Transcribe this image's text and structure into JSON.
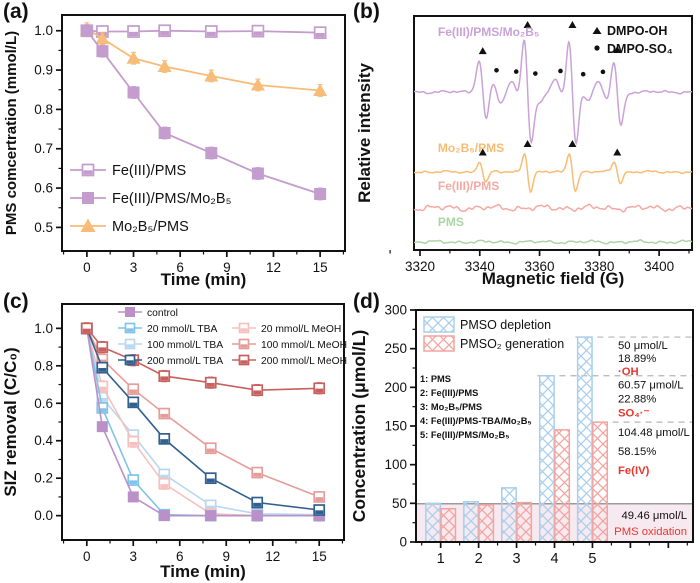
{
  "figure": {
    "background": "#ffffff",
    "panels": [
      {
        "label": "(a)"
      },
      {
        "label": "(b)"
      },
      {
        "label": "(c)"
      },
      {
        "label": "(d)"
      }
    ]
  },
  "chart_data": [
    {
      "id": "a",
      "type": "line",
      "xlabel": "Time (min)",
      "ylabel": "PMS comcertration (mmol/L)",
      "x": [
        0,
        1,
        3,
        5,
        8,
        11,
        15
      ],
      "xticks": [
        0,
        3,
        6,
        9,
        12,
        15
      ],
      "xlim": [
        -1.6,
        16.6
      ],
      "yticks": [
        0.5,
        0.6,
        0.7,
        0.8,
        0.9,
        1.0
      ],
      "ylim": [
        0.44,
        1.04
      ],
      "grid": false,
      "legend_position": "bottom-left",
      "series": [
        {
          "name": "Fe(III)/PMS",
          "marker": "square-half",
          "color": "#c49ccd",
          "err": 0.012,
          "values": [
            1.0,
            0.998,
            0.998,
            1.0,
            0.998,
            0.999,
            0.995
          ]
        },
        {
          "name": "Fe(III)/PMS/Mo₂B₅",
          "marker": "square",
          "color": "#c49ccd",
          "err": 0.015,
          "values": [
            1.0,
            0.948,
            0.843,
            0.74,
            0.689,
            0.637,
            0.585
          ]
        },
        {
          "name": "Mo₂B₅/PMS",
          "marker": "triangle",
          "color": "#f6bc78",
          "err": 0.015,
          "values": [
            1.005,
            0.98,
            0.93,
            0.909,
            0.885,
            0.862,
            0.848
          ]
        }
      ]
    },
    {
      "id": "b",
      "type": "line-epr",
      "xlabel": "Magnetic field (G)",
      "ylabel": "Relative intensity",
      "xticks": [
        3320,
        3340,
        3360,
        3380,
        3400
      ],
      "xlim": [
        3318,
        3411
      ],
      "legend": [
        {
          "symbol": "triangle",
          "label": "DMPO-OH"
        },
        {
          "symbol": "dot",
          "label": "DMPO-SO₄"
        }
      ],
      "traces": [
        {
          "name": "Fe(III)/PMS/Mo₂B₅",
          "color": "#c9a2d8",
          "baseline": 92,
          "noise": 1.6,
          "main_peaks": {
            "centers": [
              3341,
              3356,
              3371,
              3386
            ],
            "amps": [
              0.55,
              1,
              1,
              0.57
            ],
            "width": 1.25,
            "scale": 58,
            "marker": "triangle"
          },
          "satellites": {
            "centers": [
              3345.6,
              3352.2,
              3358.6,
              3367,
              3374.6,
              3381.2
            ],
            "amps": [
              0.9,
              0.8,
              0.65,
              0.85,
              0.6,
              0.78
            ],
            "width": 1.7,
            "scale": 13,
            "marker": "dot"
          },
          "label_x": 3326,
          "label_y": 36
        },
        {
          "name": "Mo₂B₅/PMS",
          "color": "#f8bc72",
          "baseline": 172,
          "noise": 1.4,
          "main_peaks": {
            "centers": [
              3341,
              3356,
              3371,
              3386
            ],
            "amps": [
              0.55,
              1,
              1,
              0.55
            ],
            "width": 1.05,
            "scale": 19,
            "marker": "triangle"
          },
          "label_x": 3326,
          "label_y": 152
        },
        {
          "name": "Fe(III)/PMS",
          "color": "#f7a8a2",
          "baseline": 208,
          "noise": 3.4,
          "label_x": 3326,
          "label_y": 190
        },
        {
          "name": "PMS",
          "color": "#abd5a3",
          "baseline": 242,
          "noise": 1.8,
          "label_x": 3326,
          "label_y": 226
        }
      ]
    },
    {
      "id": "c",
      "type": "line",
      "xlabel": "Time (min)",
      "ylabel": "SIZ removal (C/C₀)",
      "x": [
        0,
        1,
        3,
        5,
        8,
        11,
        15
      ],
      "xticks": [
        0,
        3,
        6,
        9,
        12,
        15
      ],
      "xlim": [
        -1.6,
        16.6
      ],
      "yticks": [
        0.0,
        0.2,
        0.4,
        0.6,
        0.8,
        1.0
      ],
      "ylim": [
        -0.13,
        1.13
      ],
      "grid": false,
      "legend_position": "top",
      "series": [
        {
          "name": "control",
          "marker": "square",
          "color": "#bb90c9",
          "err": 0.02,
          "values": [
            1.0,
            0.475,
            0.1,
            0.0,
            0.0,
            0.0,
            0.0
          ]
        },
        {
          "name": "20 mmol/L TBA",
          "marker": "square-half",
          "color": "#7fc4e9",
          "err": 0.02,
          "values": [
            1.0,
            0.575,
            0.19,
            0.005,
            0.0,
            0.0,
            0.0
          ]
        },
        {
          "name": "100 mmol/L TBA",
          "marker": "square-half",
          "color": "#b9d7ef",
          "err": 0.02,
          "values": [
            1.0,
            0.63,
            0.43,
            0.22,
            0.055,
            0.01,
            0.005
          ]
        },
        {
          "name": "200 mmol/L TBA",
          "marker": "square-half",
          "color": "#30608f",
          "err": 0.025,
          "values": [
            1.0,
            0.79,
            0.605,
            0.41,
            0.2,
            0.07,
            0.03
          ]
        },
        {
          "name": "20 mmol/L MeOH",
          "marker": "square-half",
          "color": "#f6c1be",
          "err": 0.03,
          "values": [
            1.0,
            0.69,
            0.395,
            0.17,
            0.01,
            0.0,
            0.0
          ]
        },
        {
          "name": "100 mmol/L MeOH",
          "marker": "square-half",
          "color": "#e59d99",
          "err": 0.02,
          "values": [
            1.0,
            0.835,
            0.675,
            0.545,
            0.36,
            0.23,
            0.1
          ]
        },
        {
          "name": "200 mmol/L MeOH",
          "marker": "square-half",
          "color": "#c8605d",
          "err": 0.03,
          "values": [
            1.0,
            0.9,
            0.83,
            0.745,
            0.71,
            0.67,
            0.68
          ]
        }
      ],
      "legend_rows": [
        [
          0
        ],
        [
          1,
          4
        ],
        [
          2,
          5
        ],
        [
          3,
          6
        ]
      ]
    },
    {
      "id": "d",
      "type": "bar",
      "ylabel": "Concentration (μmol/L)",
      "categories": [
        "1",
        "2",
        "3",
        "4",
        "5"
      ],
      "yticks": [
        0,
        50,
        100,
        150,
        200,
        250,
        300
      ],
      "ylim": [
        0,
        300
      ],
      "series": [
        {
          "name": "PMSO depletion",
          "color": "#a9cfec",
          "values": [
            50,
            52,
            70,
            215,
            265
          ]
        },
        {
          "name": "PMSO₂ generation",
          "color": "#f3a49e",
          "values": [
            43,
            48,
            51,
            145,
            155
          ]
        }
      ],
      "conditions": [
        "1: PMS",
        "2: Fe(III)/PMS",
        "3: Mo₂B₅/PMS",
        "4: Fe(III)/PMS-TBA/Mo₂B₅",
        "5: Fe(III)/PMS/Mo₂B₅"
      ],
      "guides": [
        {
          "y": 265,
          "x0": 4.55
        },
        {
          "y": 215,
          "x0": 3.55
        },
        {
          "y": 155,
          "x0": 4.95
        }
      ],
      "baseline_band": {
        "y": 49.46,
        "color": "#f7e9f0",
        "line_color": "#9b9b9b"
      },
      "annotations": [
        {
          "attach": 265,
          "lines": [
            "50 μmol/L",
            "18.89%"
          ],
          "highlight": "·OH"
        },
        {
          "attach": 215,
          "lines": [
            "60.57 μmol/L",
            "22.88%"
          ],
          "highlight": "SO₄·⁻"
        },
        {
          "attach": 155,
          "lines": [
            "104.48 μmol/L",
            "58.15%"
          ],
          "highlight": "Fe(IV)"
        },
        {
          "attach": "band",
          "lines": [
            "49.46 μmol/L"
          ],
          "highlight": "PMS oxidation"
        }
      ],
      "accent_red": "#e8372c",
      "guide_color": "#b5b5b5"
    }
  ]
}
